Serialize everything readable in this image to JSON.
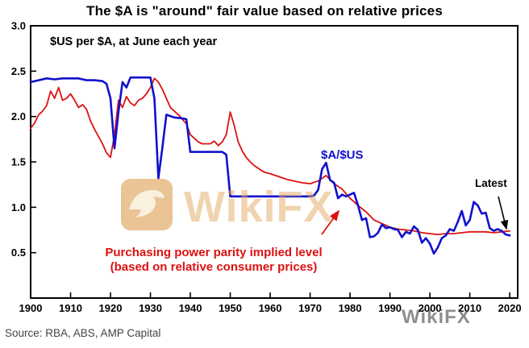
{
  "source": "Source: RBA, ABS, AMP Capital",
  "watermarks": {
    "center": "WikiFX",
    "corner": "WikiFX"
  },
  "colors": {
    "blue": "#1111CC",
    "red": "#DD1111",
    "axis": "#000000",
    "watermark_orange": "#E3A964",
    "source_text": "#444444"
  },
  "chart_data": {
    "type": "line",
    "title": "The $A is \"around\" fair value based on relative prices",
    "subtitle": "$US per $A, at June each year",
    "xlabel": "",
    "ylabel": "$US per $A",
    "xlim": [
      1900,
      2022
    ],
    "ylim": [
      0,
      3
    ],
    "grid": false,
    "legend_position": "inline-annotations",
    "xticks": [
      1900,
      1910,
      1920,
      1930,
      1940,
      1950,
      1960,
      1970,
      1980,
      1990,
      2000,
      2010,
      2020
    ],
    "yticks": [
      0.5,
      1.0,
      1.5,
      2.0,
      2.5,
      3.0
    ],
    "series": [
      {
        "id": "ppp",
        "name": "Purchasing power parity implied level (based on relative consumer prices)",
        "color": "#DD1111",
        "points": [
          [
            1900,
            1.87
          ],
          [
            1901,
            1.93
          ],
          [
            1902,
            2.02
          ],
          [
            1903,
            2.06
          ],
          [
            1904,
            2.12
          ],
          [
            1905,
            2.28
          ],
          [
            1906,
            2.2
          ],
          [
            1907,
            2.32
          ],
          [
            1908,
            2.18
          ],
          [
            1909,
            2.2
          ],
          [
            1910,
            2.25
          ],
          [
            1911,
            2.18
          ],
          [
            1912,
            2.1
          ],
          [
            1913,
            2.13
          ],
          [
            1914,
            2.08
          ],
          [
            1915,
            1.95
          ],
          [
            1916,
            1.86
          ],
          [
            1917,
            1.78
          ],
          [
            1918,
            1.7
          ],
          [
            1919,
            1.6
          ],
          [
            1920,
            1.55
          ],
          [
            1921,
            1.8
          ],
          [
            1922,
            2.18
          ],
          [
            1923,
            2.1
          ],
          [
            1924,
            2.22
          ],
          [
            1925,
            2.15
          ],
          [
            1926,
            2.12
          ],
          [
            1927,
            2.18
          ],
          [
            1928,
            2.2
          ],
          [
            1929,
            2.25
          ],
          [
            1930,
            2.32
          ],
          [
            1931,
            2.42
          ],
          [
            1932,
            2.38
          ],
          [
            1933,
            2.3
          ],
          [
            1934,
            2.2
          ],
          [
            1935,
            2.1
          ],
          [
            1936,
            2.06
          ],
          [
            1937,
            2.02
          ],
          [
            1938,
            1.97
          ],
          [
            1939,
            1.92
          ],
          [
            1940,
            1.8
          ],
          [
            1941,
            1.76
          ],
          [
            1942,
            1.72
          ],
          [
            1943,
            1.7
          ],
          [
            1944,
            1.7
          ],
          [
            1945,
            1.7
          ],
          [
            1946,
            1.73
          ],
          [
            1947,
            1.68
          ],
          [
            1948,
            1.72
          ],
          [
            1949,
            1.8
          ],
          [
            1950,
            2.05
          ],
          [
            1951,
            1.9
          ],
          [
            1952,
            1.72
          ],
          [
            1953,
            1.62
          ],
          [
            1954,
            1.55
          ],
          [
            1955,
            1.5
          ],
          [
            1956,
            1.46
          ],
          [
            1957,
            1.43
          ],
          [
            1958,
            1.4
          ],
          [
            1959,
            1.38
          ],
          [
            1960,
            1.37
          ],
          [
            1962,
            1.34
          ],
          [
            1964,
            1.31
          ],
          [
            1966,
            1.29
          ],
          [
            1968,
            1.27
          ],
          [
            1970,
            1.26
          ],
          [
            1972,
            1.29
          ],
          [
            1974,
            1.35
          ],
          [
            1976,
            1.26
          ],
          [
            1978,
            1.2
          ],
          [
            1980,
            1.1
          ],
          [
            1982,
            1.02
          ],
          [
            1984,
            0.95
          ],
          [
            1986,
            0.86
          ],
          [
            1988,
            0.82
          ],
          [
            1990,
            0.78
          ],
          [
            1992,
            0.76
          ],
          [
            1994,
            0.75
          ],
          [
            1996,
            0.74
          ],
          [
            1998,
            0.72
          ],
          [
            2000,
            0.71
          ],
          [
            2002,
            0.7
          ],
          [
            2004,
            0.71
          ],
          [
            2006,
            0.71
          ],
          [
            2008,
            0.72
          ],
          [
            2010,
            0.73
          ],
          [
            2012,
            0.73
          ],
          [
            2014,
            0.73
          ],
          [
            2016,
            0.72
          ],
          [
            2018,
            0.73
          ],
          [
            2020,
            0.74
          ]
        ]
      },
      {
        "id": "aud",
        "name": "$A/$US",
        "color": "#1111CC",
        "points": [
          [
            1900,
            2.38
          ],
          [
            1902,
            2.4
          ],
          [
            1904,
            2.42
          ],
          [
            1906,
            2.41
          ],
          [
            1908,
            2.42
          ],
          [
            1910,
            2.42
          ],
          [
            1912,
            2.42
          ],
          [
            1914,
            2.4
          ],
          [
            1916,
            2.4
          ],
          [
            1918,
            2.39
          ],
          [
            1919,
            2.36
          ],
          [
            1920,
            2.2
          ],
          [
            1921,
            1.65
          ],
          [
            1922,
            2.05
          ],
          [
            1923,
            2.38
          ],
          [
            1924,
            2.32
          ],
          [
            1925,
            2.43
          ],
          [
            1927,
            2.43
          ],
          [
            1929,
            2.43
          ],
          [
            1930,
            2.43
          ],
          [
            1931,
            2.2
          ],
          [
            1932,
            1.32
          ],
          [
            1933,
            1.66
          ],
          [
            1934,
            2.02
          ],
          [
            1936,
            1.99
          ],
          [
            1938,
            1.98
          ],
          [
            1939,
            1.97
          ],
          [
            1940,
            1.61
          ],
          [
            1944,
            1.61
          ],
          [
            1948,
            1.61
          ],
          [
            1949,
            1.58
          ],
          [
            1950,
            1.12
          ],
          [
            1955,
            1.12
          ],
          [
            1960,
            1.12
          ],
          [
            1965,
            1.12
          ],
          [
            1970,
            1.12
          ],
          [
            1971,
            1.13
          ],
          [
            1972,
            1.19
          ],
          [
            1973,
            1.42
          ],
          [
            1974,
            1.49
          ],
          [
            1975,
            1.3
          ],
          [
            1976,
            1.27
          ],
          [
            1977,
            1.1
          ],
          [
            1978,
            1.14
          ],
          [
            1979,
            1.12
          ],
          [
            1980,
            1.14
          ],
          [
            1981,
            1.16
          ],
          [
            1982,
            1.02
          ],
          [
            1983,
            0.86
          ],
          [
            1984,
            0.88
          ],
          [
            1985,
            0.67
          ],
          [
            1986,
            0.68
          ],
          [
            1987,
            0.72
          ],
          [
            1988,
            0.81
          ],
          [
            1989,
            0.77
          ],
          [
            1990,
            0.78
          ],
          [
            1991,
            0.76
          ],
          [
            1992,
            0.75
          ],
          [
            1993,
            0.67
          ],
          [
            1994,
            0.73
          ],
          [
            1995,
            0.71
          ],
          [
            1996,
            0.79
          ],
          [
            1997,
            0.75
          ],
          [
            1998,
            0.61
          ],
          [
            1999,
            0.66
          ],
          [
            2000,
            0.6
          ],
          [
            2001,
            0.49
          ],
          [
            2002,
            0.56
          ],
          [
            2003,
            0.66
          ],
          [
            2004,
            0.69
          ],
          [
            2005,
            0.76
          ],
          [
            2006,
            0.74
          ],
          [
            2007,
            0.84
          ],
          [
            2008,
            0.96
          ],
          [
            2009,
            0.8
          ],
          [
            2010,
            0.86
          ],
          [
            2011,
            1.06
          ],
          [
            2012,
            1.02
          ],
          [
            2013,
            0.93
          ],
          [
            2014,
            0.94
          ],
          [
            2015,
            0.77
          ],
          [
            2016,
            0.74
          ],
          [
            2017,
            0.76
          ],
          [
            2018,
            0.74
          ],
          [
            2019,
            0.7
          ],
          [
            2020,
            0.69
          ]
        ]
      }
    ],
    "annotations": {
      "series_blue": "$A/$US",
      "latest": "Latest",
      "ppp_line1": "Purchasing power parity implied level",
      "ppp_line2": "(based on relative consumer prices)"
    }
  }
}
